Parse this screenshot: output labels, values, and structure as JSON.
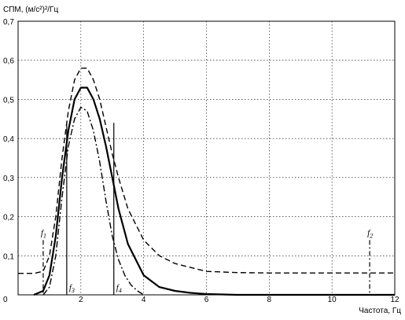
{
  "chart_data": {
    "type": "line",
    "ylabel": "СПМ, (м/с²)²/Гц",
    "xlabel": "Частота, Гц",
    "xlim": [
      0,
      12
    ],
    "ylim": [
      0,
      0.7
    ],
    "x_ticks": [
      0,
      2,
      4,
      6,
      8,
      10,
      12
    ],
    "y_ticks": [
      "0,1",
      "0,2",
      "0,3",
      "0,4",
      "0,5",
      "0,6",
      "0,7"
    ],
    "grid": true,
    "series": [
      {
        "style": "solid",
        "x": [
          0.5,
          0.8,
          1.0,
          1.2,
          1.4,
          1.6,
          1.8,
          2.0,
          2.2,
          2.4,
          2.6,
          2.8,
          3.0,
          3.2,
          3.5,
          4.0,
          4.5,
          5.0,
          5.5,
          6.0,
          7.0,
          8.0,
          9.0,
          10.0,
          11.0,
          12.0
        ],
        "values": [
          0.0,
          0.01,
          0.05,
          0.15,
          0.3,
          0.42,
          0.5,
          0.53,
          0.53,
          0.5,
          0.45,
          0.38,
          0.3,
          0.22,
          0.13,
          0.05,
          0.02,
          0.01,
          0.005,
          0.002,
          0.0,
          0.0,
          0.0,
          0.0,
          0.0,
          0.0
        ]
      },
      {
        "style": "dashed",
        "x": [
          0.0,
          0.5,
          0.8,
          1.0,
          1.2,
          1.4,
          1.6,
          1.8,
          2.0,
          2.2,
          2.4,
          2.6,
          2.8,
          3.0,
          3.2,
          3.5,
          4.0,
          4.5,
          5.0,
          5.5,
          6.0,
          7.0,
          8.0,
          9.0,
          10.0,
          11.0,
          12.0
        ],
        "values": [
          0.055,
          0.055,
          0.06,
          0.1,
          0.2,
          0.35,
          0.47,
          0.55,
          0.58,
          0.58,
          0.55,
          0.5,
          0.43,
          0.36,
          0.3,
          0.22,
          0.14,
          0.1,
          0.08,
          0.07,
          0.06,
          0.057,
          0.056,
          0.056,
          0.056,
          0.056,
          0.056
        ]
      },
      {
        "style": "dashdot",
        "x": [
          0.8,
          1.0,
          1.2,
          1.4,
          1.6,
          1.8,
          2.0,
          2.2,
          2.4,
          2.6,
          2.8,
          3.0,
          3.2,
          3.4,
          3.6,
          3.8,
          4.0
        ],
        "values": [
          0.0,
          0.02,
          0.1,
          0.25,
          0.38,
          0.45,
          0.48,
          0.47,
          0.42,
          0.34,
          0.24,
          0.15,
          0.09,
          0.05,
          0.025,
          0.01,
          0.0
        ]
      }
    ],
    "markers": [
      {
        "label": "f",
        "sub": "1",
        "x": 0.8,
        "y_top": 0.14,
        "label_pos": "above",
        "style": "dashdot"
      },
      {
        "label": "f",
        "sub": "2",
        "x": 11.2,
        "y_top": 0.14,
        "label_pos": "above",
        "style": "dashdot"
      },
      {
        "label": "f",
        "sub": "3",
        "x": 1.55,
        "y_top": 0.44,
        "label_pos": "below",
        "style": "solid"
      },
      {
        "label": "f",
        "sub": "4",
        "x": 3.05,
        "y_top": 0.44,
        "label_pos": "below",
        "style": "solid"
      }
    ]
  }
}
